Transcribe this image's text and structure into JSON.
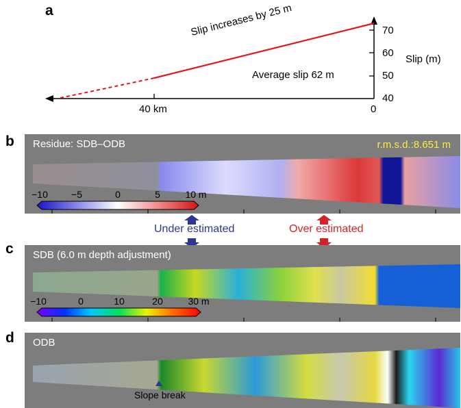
{
  "panels": {
    "a": {
      "letter": "a",
      "slip_label": "Slip increases by 25 m",
      "avg_label": "Average slip 62 m",
      "axis_title": "Slip (m)",
      "axis_ticks": [
        "70",
        "60",
        "50",
        "40"
      ],
      "dist_label": "40 km",
      "zero_label": "0",
      "line_color": "#e8141c"
    },
    "b": {
      "letter": "b",
      "title": "Residue: SDB–ODB",
      "rmsd": "r.m.s.d.:8.651 m",
      "colorbar_ticks": [
        "−10",
        "−5",
        "0",
        "5",
        "10 m"
      ],
      "colormap": [
        "#1515c8",
        "#8a8ae8",
        "#ffffff",
        "#f08a8a",
        "#d41414"
      ]
    },
    "c": {
      "letter": "c",
      "title": "SDB (6.0 m depth adjustment)",
      "colorbar_ticks": [
        "−10",
        "0",
        "10",
        "20",
        "30 m"
      ],
      "colormap": [
        "#7b00ff",
        "#0033ff",
        "#00c8ff",
        "#00e05a",
        "#f0f000",
        "#ff6a00",
        "#ff0000"
      ]
    },
    "d": {
      "letter": "d",
      "title": "ODB",
      "slope_label": "Slope break"
    }
  },
  "annotations": {
    "under": "Under estimated",
    "over": "Over estimated",
    "under_color": "#2f3690",
    "over_color": "#d2232a"
  }
}
